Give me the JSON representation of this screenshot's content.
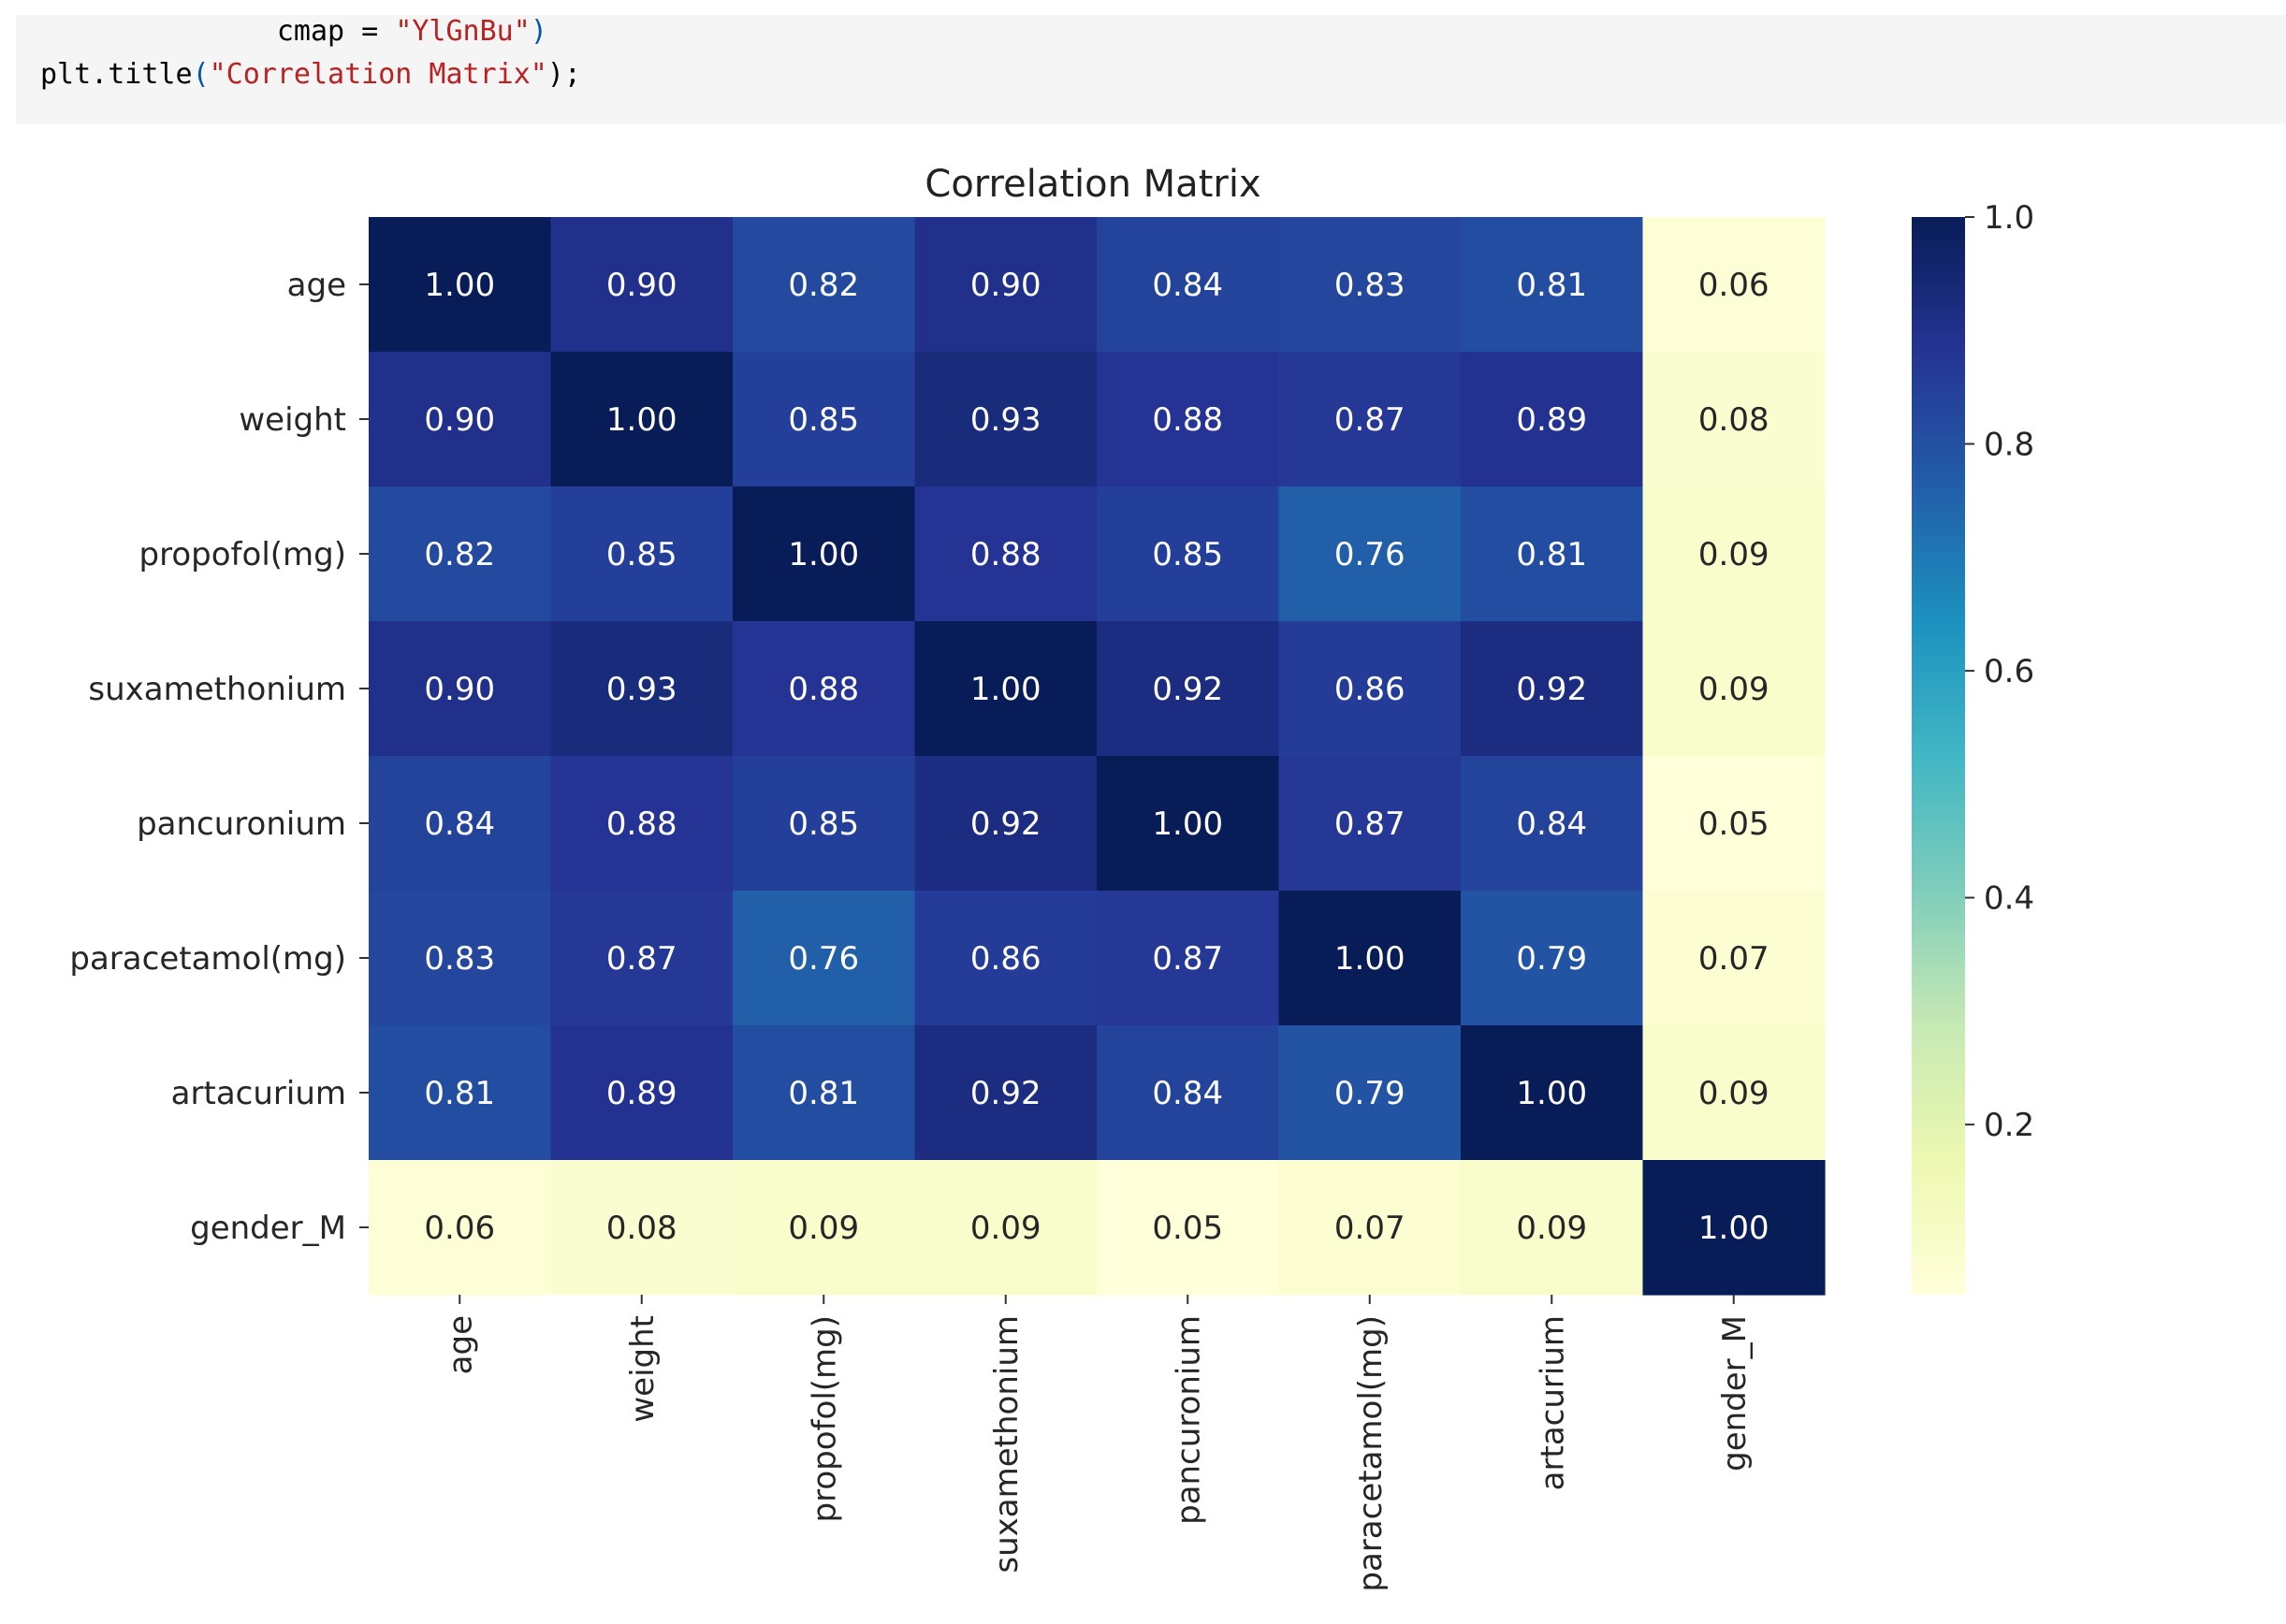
{
  "code_cell": {
    "line1": {
      "indent": "              ",
      "name": "cmap = ",
      "string": "\"YlGnBu\"",
      "close": ")"
    },
    "line2": {
      "call": "plt.title",
      "open": "(",
      "string": "\"Correlation Matrix\"",
      "close": ");"
    }
  },
  "chart_data": {
    "type": "heatmap",
    "title": "Correlation Matrix",
    "colormap": "YlGnBu",
    "rows": [
      "age",
      "weight",
      "propofol(mg)",
      "suxamethonium",
      "pancuronium",
      "paracetamol(mg)",
      "artacurium",
      "gender_M"
    ],
    "columns": [
      "age",
      "weight",
      "propofol(mg)",
      "suxamethonium",
      "pancuronium",
      "paracetamol(mg)",
      "artacurium",
      "gender_M"
    ],
    "values": [
      [
        1.0,
        0.9,
        0.82,
        0.9,
        0.84,
        0.83,
        0.81,
        0.06
      ],
      [
        0.9,
        1.0,
        0.85,
        0.93,
        0.88,
        0.87,
        0.89,
        0.08
      ],
      [
        0.82,
        0.85,
        1.0,
        0.88,
        0.85,
        0.76,
        0.81,
        0.09
      ],
      [
        0.9,
        0.93,
        0.88,
        1.0,
        0.92,
        0.86,
        0.92,
        0.09
      ],
      [
        0.84,
        0.88,
        0.85,
        0.92,
        1.0,
        0.87,
        0.84,
        0.05
      ],
      [
        0.83,
        0.87,
        0.76,
        0.86,
        0.87,
        1.0,
        0.79,
        0.07
      ],
      [
        0.81,
        0.89,
        0.81,
        0.92,
        0.84,
        0.79,
        1.0,
        0.09
      ],
      [
        0.06,
        0.08,
        0.09,
        0.09,
        0.05,
        0.07,
        0.09,
        1.0
      ]
    ],
    "annotation_format": "0.00",
    "colorbar": {
      "range": [
        0.05,
        1.0
      ],
      "ticks": [
        1.0,
        0.8,
        0.6,
        0.4,
        0.2
      ],
      "tick_labels": [
        "1.0",
        "0.8",
        "0.6",
        "0.4",
        "0.2"
      ]
    }
  }
}
